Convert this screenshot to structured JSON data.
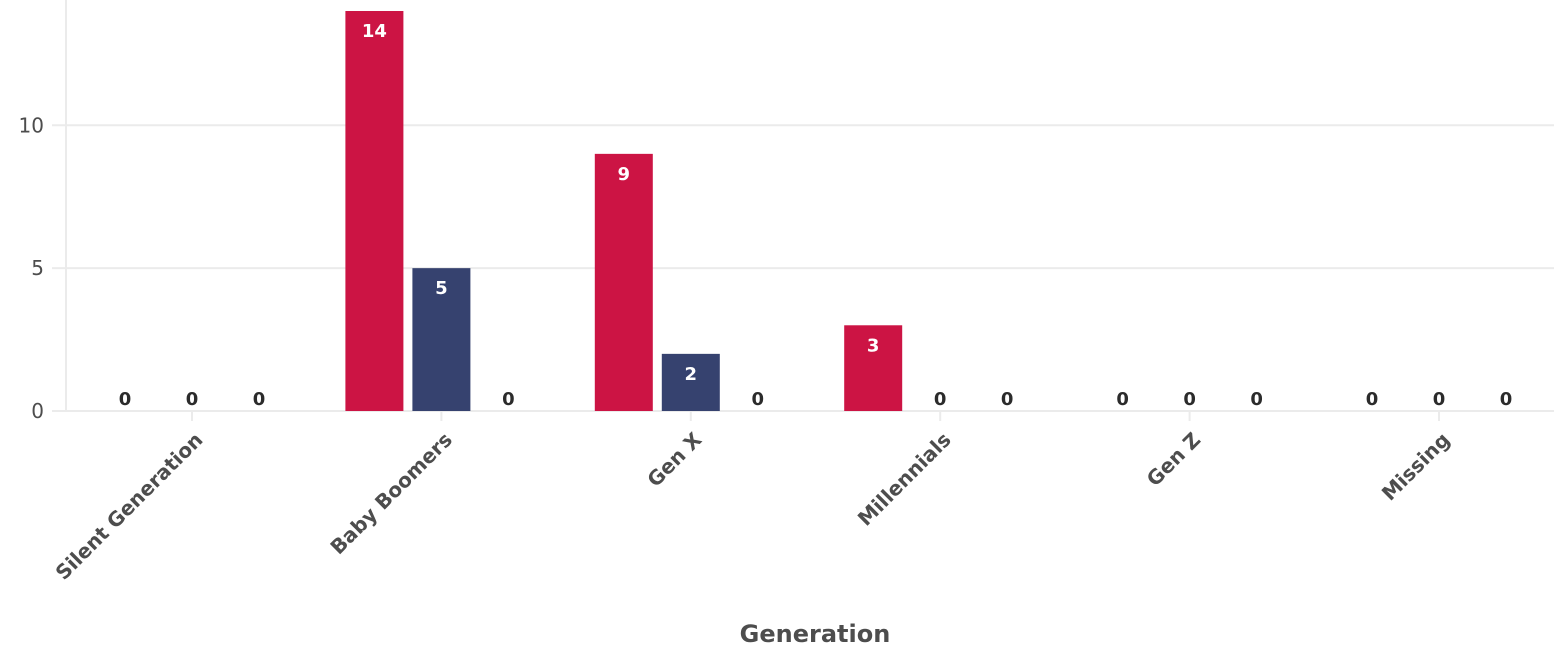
{
  "chart_data": {
    "type": "bar",
    "xlabel": "Generation",
    "ylabel": "",
    "title": "",
    "categories": [
      "Silent Generation",
      "Baby Boomers",
      "Gen X",
      "Millennials",
      "Gen Z",
      "Missing"
    ],
    "series": [
      {
        "color": "#cc1444",
        "values": [
          0,
          14,
          9,
          3,
          0,
          0
        ]
      },
      {
        "color": "#36426f",
        "values": [
          0,
          5,
          2,
          0,
          0,
          0
        ]
      },
      {
        "color": "#9e9e9e",
        "values": [
          0,
          0,
          0,
          0,
          0,
          0
        ]
      }
    ],
    "y_ticks": [
      "0",
      "5",
      "10"
    ],
    "ylim": [
      0,
      14
    ],
    "grid": true,
    "legend": "none"
  }
}
